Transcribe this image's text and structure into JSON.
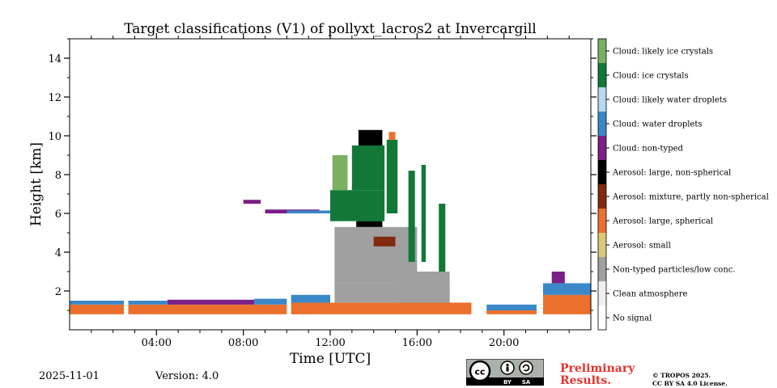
{
  "chart_data": {
    "type": "heatmap",
    "title": "Target classifications (V1) of pollyxt_lacros2 at Invercargill",
    "xlabel": "Time [UTC]",
    "ylabel": "Height [km]",
    "xlim": [
      0,
      24
    ],
    "ylim": [
      0,
      15
    ],
    "x_ticks": [
      {
        "value": 4,
        "label": "04:00"
      },
      {
        "value": 8,
        "label": "08:00"
      },
      {
        "value": 12,
        "label": "12:00"
      },
      {
        "value": 16,
        "label": "16:00"
      },
      {
        "value": 20,
        "label": "20:00"
      }
    ],
    "y_ticks": [
      {
        "value": 2,
        "label": "2"
      },
      {
        "value": 4,
        "label": "4"
      },
      {
        "value": 6,
        "label": "6"
      },
      {
        "value": 8,
        "label": "8"
      },
      {
        "value": 10,
        "label": "10"
      },
      {
        "value": 12,
        "label": "12"
      },
      {
        "value": 14,
        "label": "14"
      }
    ],
    "classes": [
      {
        "label": "No signal",
        "color": "#ffffff"
      },
      {
        "label": "Clean atmosphere",
        "color": "#f0f0f0"
      },
      {
        "label": "Non-typed particles/low conc.",
        "color": "#a0a0a0"
      },
      {
        "label": "Aerosol: small",
        "color": "#d8c878"
      },
      {
        "label": "Aerosol: large, spherical",
        "color": "#eb702e"
      },
      {
        "label": "Aerosol: mixture, partly non-spherical",
        "color": "#822a0e"
      },
      {
        "label": "Aerosol: large, non-spherical",
        "color": "#000000"
      },
      {
        "label": "Cloud: non-typed",
        "color": "#7b1e86"
      },
      {
        "label": "Cloud: water droplets",
        "color": "#3a88c8"
      },
      {
        "label": "Cloud: likely water droplets",
        "color": "#b8d8f0"
      },
      {
        "label": "Cloud: ice crystals",
        "color": "#127838"
      },
      {
        "label": "Cloud: likely ice crystals",
        "color": "#7ab060"
      }
    ],
    "features": [
      {
        "class": 4,
        "x0": 0.0,
        "x1": 2.5,
        "y0": 0.8,
        "y1": 1.3
      },
      {
        "class": 8,
        "x0": 0.0,
        "x1": 2.5,
        "y0": 1.3,
        "y1": 1.5
      },
      {
        "class": 4,
        "x0": 2.7,
        "x1": 10.0,
        "y0": 0.8,
        "y1": 1.3
      },
      {
        "class": 7,
        "x0": 4.5,
        "x1": 8.5,
        "y0": 1.3,
        "y1": 1.55
      },
      {
        "class": 8,
        "x0": 2.7,
        "x1": 4.5,
        "y0": 1.3,
        "y1": 1.5
      },
      {
        "class": 8,
        "x0": 8.5,
        "x1": 10.0,
        "y0": 1.3,
        "y1": 1.6
      },
      {
        "class": 4,
        "x0": 10.2,
        "x1": 18.5,
        "y0": 0.8,
        "y1": 1.4
      },
      {
        "class": 8,
        "x0": 10.2,
        "x1": 12.0,
        "y0": 1.4,
        "y1": 1.8
      },
      {
        "class": 2,
        "x0": 12.2,
        "x1": 17.5,
        "y0": 1.4,
        "y1": 2.4
      },
      {
        "class": 2,
        "x0": 12.2,
        "x1": 16.0,
        "y0": 2.4,
        "y1": 5.3
      },
      {
        "class": 6,
        "x0": 13.2,
        "x1": 14.4,
        "y0": 5.3,
        "y1": 5.6
      },
      {
        "class": 5,
        "x0": 14.0,
        "x1": 15.0,
        "y0": 4.3,
        "y1": 4.8
      },
      {
        "class": 10,
        "x0": 12.0,
        "x1": 14.5,
        "y0": 5.6,
        "y1": 7.2
      },
      {
        "class": 11,
        "x0": 12.1,
        "x1": 12.8,
        "y0": 7.2,
        "y1": 9.0
      },
      {
        "class": 10,
        "x0": 13.0,
        "x1": 14.5,
        "y0": 7.2,
        "y1": 9.5
      },
      {
        "class": 6,
        "x0": 13.3,
        "x1": 14.4,
        "y0": 9.5,
        "y1": 10.3
      },
      {
        "class": 10,
        "x0": 14.6,
        "x1": 15.1,
        "y0": 6.0,
        "y1": 9.8
      },
      {
        "class": 4,
        "x0": 14.7,
        "x1": 15.0,
        "y0": 9.8,
        "y1": 10.2
      },
      {
        "class": 10,
        "x0": 15.6,
        "x1": 15.9,
        "y0": 3.5,
        "y1": 8.2
      },
      {
        "class": 10,
        "x0": 16.2,
        "x1": 16.4,
        "y0": 3.5,
        "y1": 8.5
      },
      {
        "class": 10,
        "x0": 17.0,
        "x1": 17.3,
        "y0": 3.0,
        "y1": 6.5
      },
      {
        "class": 7,
        "x0": 9.0,
        "x1": 11.5,
        "y0": 6.0,
        "y1": 6.2
      },
      {
        "class": 8,
        "x0": 10.0,
        "x1": 12.0,
        "y0": 6.0,
        "y1": 6.15
      },
      {
        "class": 7,
        "x0": 8.0,
        "x1": 8.8,
        "y0": 6.5,
        "y1": 6.7
      },
      {
        "class": 2,
        "x0": 15.0,
        "x1": 17.5,
        "y0": 1.4,
        "y1": 3.0
      },
      {
        "class": 4,
        "x0": 19.2,
        "x1": 21.5,
        "y0": 0.8,
        "y1": 1.0
      },
      {
        "class": 8,
        "x0": 19.2,
        "x1": 21.5,
        "y0": 1.0,
        "y1": 1.3
      },
      {
        "class": 4,
        "x0": 21.8,
        "x1": 24.0,
        "y0": 0.8,
        "y1": 1.8
      },
      {
        "class": 8,
        "x0": 21.8,
        "x1": 24.0,
        "y0": 1.8,
        "y1": 2.4
      },
      {
        "class": 7,
        "x0": 22.2,
        "x1": 22.8,
        "y0": 2.4,
        "y1": 3.0
      }
    ]
  },
  "footer": {
    "date": "2025-11-01",
    "version": "Version: 4.0",
    "preliminary_line1": "Preliminary",
    "preliminary_line2": "Results.",
    "copyright_line1": "© TROPOS 2025.",
    "copyright_line2": "CC BY SA 4.0 License.",
    "license_badge": {
      "cc": "cc",
      "by": "BY",
      "sa": "SA"
    }
  }
}
